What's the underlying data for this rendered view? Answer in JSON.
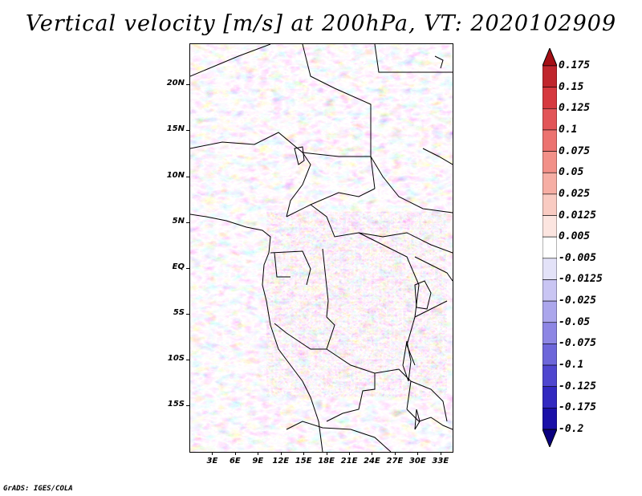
{
  "title": "Vertical velocity [m/s] at 200hPa, VT: 2020102909",
  "footer": "GrADS: IGES/COLA",
  "map": {
    "lat_labels": [
      "20N",
      "15N",
      "10N",
      "5N",
      "EQ",
      "5S",
      "10S",
      "15S"
    ],
    "lon_labels": [
      "3E",
      "6E",
      "9E",
      "12E",
      "15E",
      "18E",
      "21E",
      "24E",
      "27E",
      "30E",
      "33E"
    ],
    "lat_values": [
      20,
      15,
      10,
      5,
      0,
      -5,
      -10,
      -15
    ],
    "lon_values": [
      3,
      6,
      9,
      12,
      15,
      18,
      21,
      24,
      27,
      30,
      33
    ],
    "lat_range": [
      -20,
      24.5
    ],
    "lon_range": [
      0,
      34.5
    ]
  },
  "colorbar": {
    "labels": [
      "0.175",
      "0.15",
      "0.125",
      "0.1",
      "0.075",
      "0.05",
      "0.025",
      "0.0125",
      "0.005",
      "-0.005",
      "-0.0125",
      "-0.025",
      "-0.05",
      "-0.075",
      "-0.1",
      "-0.125",
      "-0.175",
      "-0.2"
    ],
    "colors": [
      "#a50f15",
      "#c0262d",
      "#d6393f",
      "#e25558",
      "#ec7370",
      "#f29088",
      "#f6aea4",
      "#f9cbc2",
      "#fce5e0",
      "#ffffff",
      "#e3e2f8",
      "#c9c5f3",
      "#aba6ec",
      "#8d86e4",
      "#6d66da",
      "#4f46cf",
      "#3229c0",
      "#1a10a8",
      "#0a0080"
    ]
  }
}
